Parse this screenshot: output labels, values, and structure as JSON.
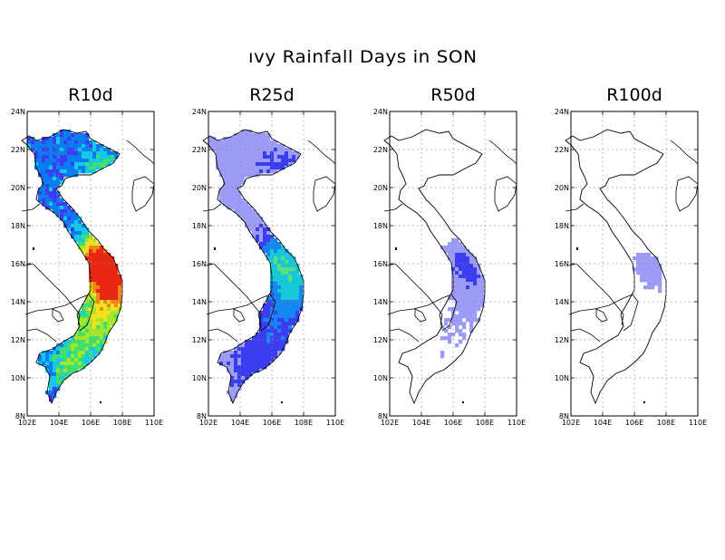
{
  "title": "ıvy Rainfall Days in SON",
  "panels": [
    {
      "title": "R10d",
      "palette": [
        "#3a3ef0",
        "#0a7cf0",
        "#12c9e8",
        "#40e070",
        "#a4e628",
        "#f0e020",
        "#f08818",
        "#e82814"
      ]
    },
    {
      "title": "R25d",
      "palette": [
        "#9c9cf6",
        "#3a3ef0",
        "#1488f0",
        "#18c8d8",
        "#58e080"
      ]
    },
    {
      "title": "R50d",
      "palette": [
        "#ffffff",
        "#9c9cf6",
        "#3a3ef0",
        "#1488f0"
      ]
    },
    {
      "title": "R100d",
      "palette": [
        "#ffffff",
        "#9c9cf6",
        "#3a3ef0"
      ]
    }
  ],
  "axes": {
    "y_ticks": [
      "24N",
      "22N",
      "20N",
      "18N",
      "16N",
      "14N",
      "12N",
      "10N",
      "8N"
    ],
    "x_ticks": [
      "102E",
      "104E",
      "106E",
      "108E",
      "110E"
    ],
    "grid": true
  }
}
